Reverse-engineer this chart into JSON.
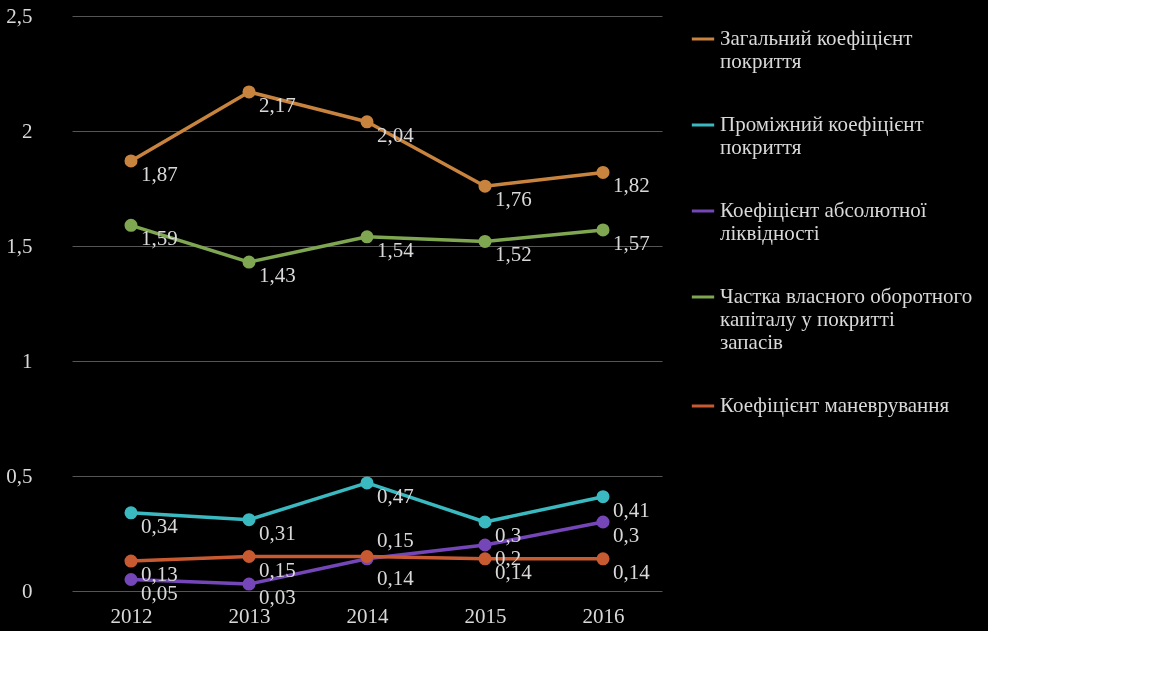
{
  "chart_data": {
    "type": "line",
    "categories": [
      "2012",
      "2013",
      "2014",
      "2015",
      "2016"
    ],
    "ylim": [
      0,
      2.5
    ],
    "yticks": [
      {
        "value": 0,
        "label": "0"
      },
      {
        "value": 0.5,
        "label": "0,5"
      },
      {
        "value": 1,
        "label": "1"
      },
      {
        "value": 1.5,
        "label": "1,5"
      },
      {
        "value": 2,
        "label": "2"
      },
      {
        "value": 2.5,
        "label": "2,5"
      }
    ],
    "grid": "y",
    "legend": "right",
    "marker": "circle",
    "line_style": "solid",
    "series": [
      {
        "name": "Загальний коефіцієнт покриття",
        "color": "#c8843e",
        "values": [
          1.87,
          2.17,
          2.04,
          1.76,
          1.82
        ],
        "value_labels": [
          "1,87",
          "2,17",
          "2,04",
          "1,76",
          "1,82"
        ]
      },
      {
        "name": "Проміжний коефіцієнт покриття",
        "color": "#3bb9c0",
        "values": [
          0.34,
          0.31,
          0.47,
          0.3,
          0.41
        ],
        "value_labels": [
          "0,34",
          "0,31",
          "0,47",
          "0,3",
          "0,41"
        ]
      },
      {
        "name": "Коефіцієнт абсолютної ліквідності",
        "color": "#7446b8",
        "values": [
          0.05,
          0.03,
          0.14,
          0.2,
          0.3
        ],
        "value_labels": [
          "0,05",
          "0,03",
          "0,14",
          "0,2",
          "0,3"
        ]
      },
      {
        "name": "Частка власного оборотного капіталу у покритті запасів",
        "color": "#7fa650",
        "values": [
          1.59,
          1.43,
          1.54,
          1.52,
          1.57
        ],
        "value_labels": [
          "1,59",
          "1,43",
          "1,54",
          "1,52",
          "1,57"
        ]
      },
      {
        "name": "Коефіцієнт маневрування",
        "color": "#c85a32",
        "values": [
          0.13,
          0.15,
          0.15,
          0.14,
          0.14
        ],
        "value_labels": [
          "0,13",
          "0,15",
          "0,15",
          "0,14",
          "0,14"
        ]
      }
    ]
  }
}
